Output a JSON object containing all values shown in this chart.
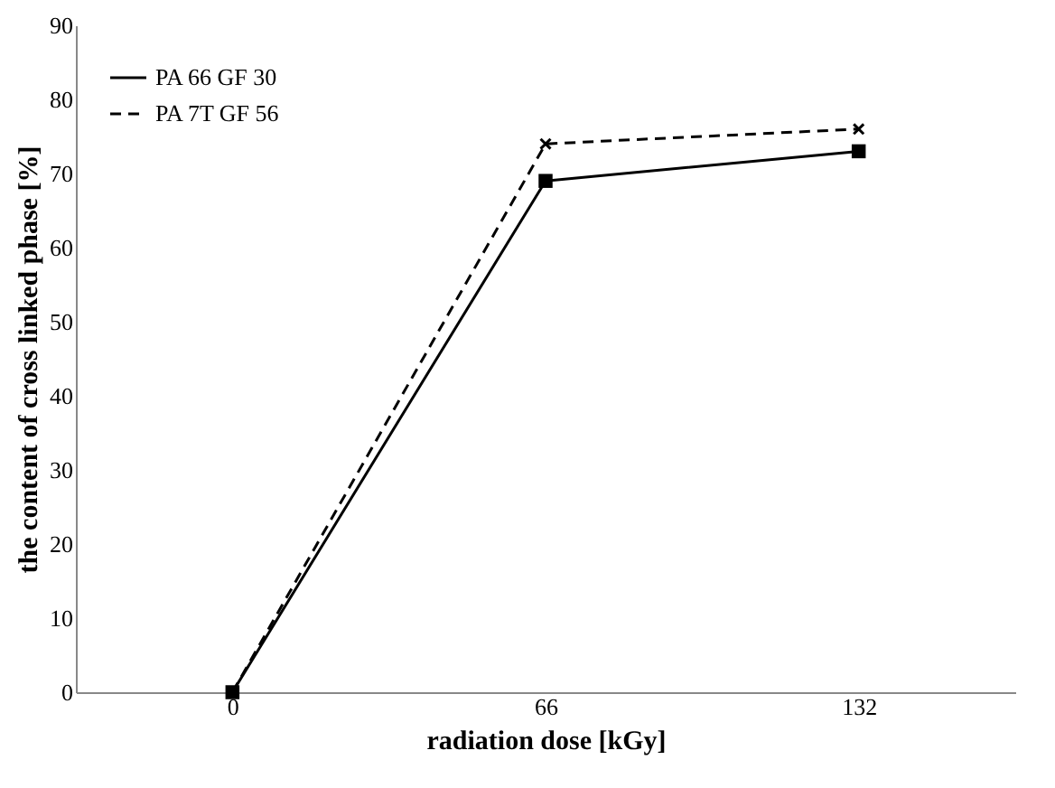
{
  "chart_data": {
    "type": "line",
    "xlabel": "radiation dose [kGy]",
    "ylabel": "the content of cross linked phase [%]",
    "categories": [
      "0",
      "66",
      "132"
    ],
    "series": [
      {
        "name": "PA 66 GF 30",
        "color": "#000000",
        "values": [
          0,
          69,
          73
        ],
        "marker": "square",
        "line_style": "solid"
      },
      {
        "name": "PA 7T GF 56",
        "color": "#000000",
        "values": [
          0,
          74,
          76
        ],
        "marker": "cross",
        "line_style": "dashed"
      }
    ],
    "ylim": [
      0,
      90
    ],
    "yticks": [
      0,
      10,
      20,
      30,
      40,
      50,
      60,
      70,
      80,
      90
    ],
    "grid": false,
    "legend": "top left"
  }
}
